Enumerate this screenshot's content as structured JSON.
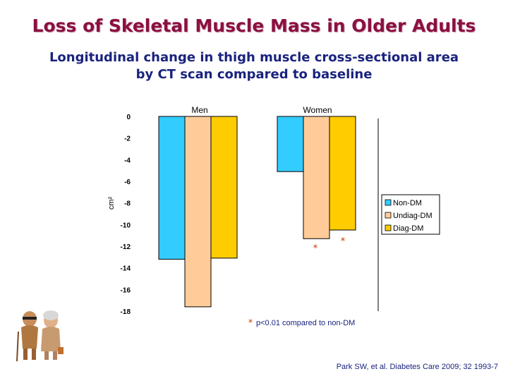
{
  "page": {
    "title": "Loss of Skeletal Muscle Mass in Older Adults",
    "subtitle_line1": "Longitudinal change in thigh muscle cross-sectional area",
    "subtitle_line2": "by CT scan compared to baseline",
    "citation": "Park SW, et al. Diabetes Care 2009; 32 1993-7"
  },
  "chart_data": {
    "type": "bar",
    "categories": [
      "Men",
      "Women"
    ],
    "series": [
      {
        "name": "Non-DM",
        "color": "#33ccff",
        "values": [
          -13.2,
          -5.1
        ]
      },
      {
        "name": "Undiag-DM",
        "color": "#ffcc99",
        "values": [
          -17.6,
          -11.3
        ]
      },
      {
        "name": "Diag-DM",
        "color": "#ffcc00",
        "values": [
          -13.1,
          -10.5
        ]
      }
    ],
    "ylabel": "cm²",
    "ylim": [
      -18,
      0
    ],
    "yticks": [
      0,
      -2,
      -4,
      -6,
      -8,
      -10,
      -12,
      -14,
      -16,
      -18
    ],
    "ytick_labels": [
      "0",
      "-2",
      "-4",
      "-6",
      "-8",
      "-10",
      "-12",
      "-14",
      "-16",
      "-18"
    ],
    "significance_marks": [
      "*",
      "*"
    ],
    "footnote_star": "*",
    "footnote_text": "p<0.01 compared to non-DM",
    "legend_placement": "right",
    "grid": false
  },
  "icons": {
    "decoration": "elderly-couple-icon"
  }
}
